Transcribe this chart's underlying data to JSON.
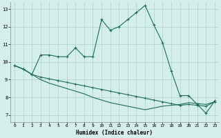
{
  "xlabel": "Humidex (Indice chaleur)",
  "background_color": "#d4eeea",
  "grid_color": "#b8d8d4",
  "line_color": "#1e6b5e",
  "xlim": [
    -0.5,
    23.5
  ],
  "ylim": [
    6.6,
    13.4
  ],
  "xticks": [
    0,
    1,
    2,
    3,
    4,
    5,
    6,
    7,
    8,
    9,
    10,
    11,
    12,
    13,
    14,
    15,
    16,
    17,
    18,
    19,
    20,
    21,
    22,
    23
  ],
  "yticks": [
    7,
    8,
    9,
    10,
    11,
    12,
    13
  ],
  "series1_x": [
    0,
    1,
    2,
    3,
    4,
    5,
    6,
    7,
    8,
    9,
    10,
    11,
    12,
    13,
    14,
    15,
    16,
    17,
    18,
    19,
    20,
    21,
    22,
    23
  ],
  "series1_y": [
    9.8,
    9.6,
    9.3,
    10.4,
    10.4,
    10.3,
    10.3,
    10.8,
    10.3,
    10.3,
    12.4,
    11.8,
    12.0,
    12.4,
    12.8,
    13.2,
    12.1,
    11.1,
    9.5,
    8.1,
    8.1,
    7.6,
    7.1,
    7.8
  ],
  "series2_x": [
    0,
    1,
    2,
    3,
    4,
    5,
    6,
    7,
    8,
    9,
    10,
    11,
    12,
    13,
    14,
    15,
    16,
    17,
    18,
    19,
    20,
    21,
    22,
    23
  ],
  "series2_y": [
    9.8,
    9.6,
    9.3,
    9.15,
    9.05,
    8.95,
    8.85,
    8.75,
    8.65,
    8.55,
    8.45,
    8.35,
    8.25,
    8.15,
    8.05,
    7.95,
    7.85,
    7.75,
    7.65,
    7.55,
    7.6,
    7.55,
    7.5,
    7.75
  ],
  "series3_x": [
    0,
    1,
    2,
    3,
    4,
    5,
    6,
    7,
    8,
    9,
    10,
    11,
    12,
    13,
    14,
    15,
    16,
    17,
    18,
    19,
    20,
    21,
    22,
    23
  ],
  "series3_y": [
    9.8,
    9.6,
    9.3,
    9.0,
    8.8,
    8.65,
    8.5,
    8.35,
    8.2,
    8.0,
    7.85,
    7.7,
    7.6,
    7.5,
    7.4,
    7.3,
    7.4,
    7.5,
    7.55,
    7.6,
    7.7,
    7.65,
    7.6,
    7.75
  ]
}
